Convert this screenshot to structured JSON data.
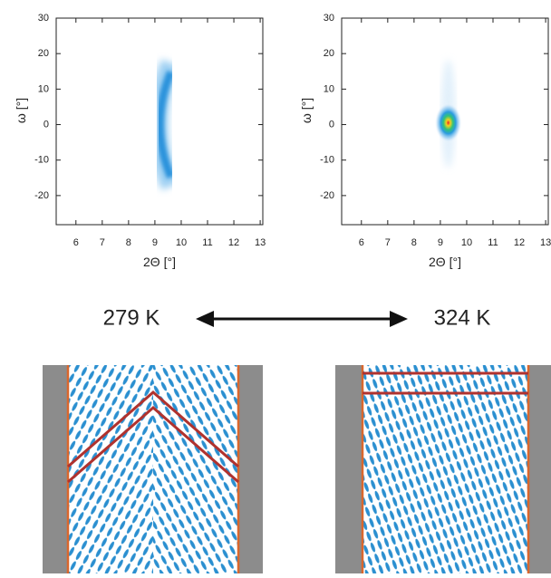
{
  "chart_data": [
    {
      "type": "heatmap",
      "xlabel": "2Θ [°]",
      "ylabel": "ω [°]",
      "xlim": [
        5.25,
        13.1
      ],
      "ylim": [
        -28.2,
        30
      ],
      "xticks": [
        6,
        7,
        8,
        9,
        10,
        11,
        12,
        13
      ],
      "yticks": [
        -20,
        -10,
        0,
        10,
        20,
        30
      ],
      "peak": {
        "x": 9.4,
        "y": 0
      }
    },
    {
      "type": "heatmap",
      "xlabel": "2Θ [°]",
      "ylabel": "ω [°]",
      "xlim": [
        5.25,
        13.1
      ],
      "ylim": [
        -28.2,
        30
      ],
      "xticks": [
        6,
        7,
        8,
        9,
        10,
        11,
        12,
        13
      ],
      "yticks": [
        -20,
        -10,
        0,
        10,
        20,
        30
      ],
      "peak": {
        "x": 9.3,
        "y": 0.5
      }
    }
  ],
  "temperatures": {
    "low": "279 K",
    "high": "324 K"
  }
}
